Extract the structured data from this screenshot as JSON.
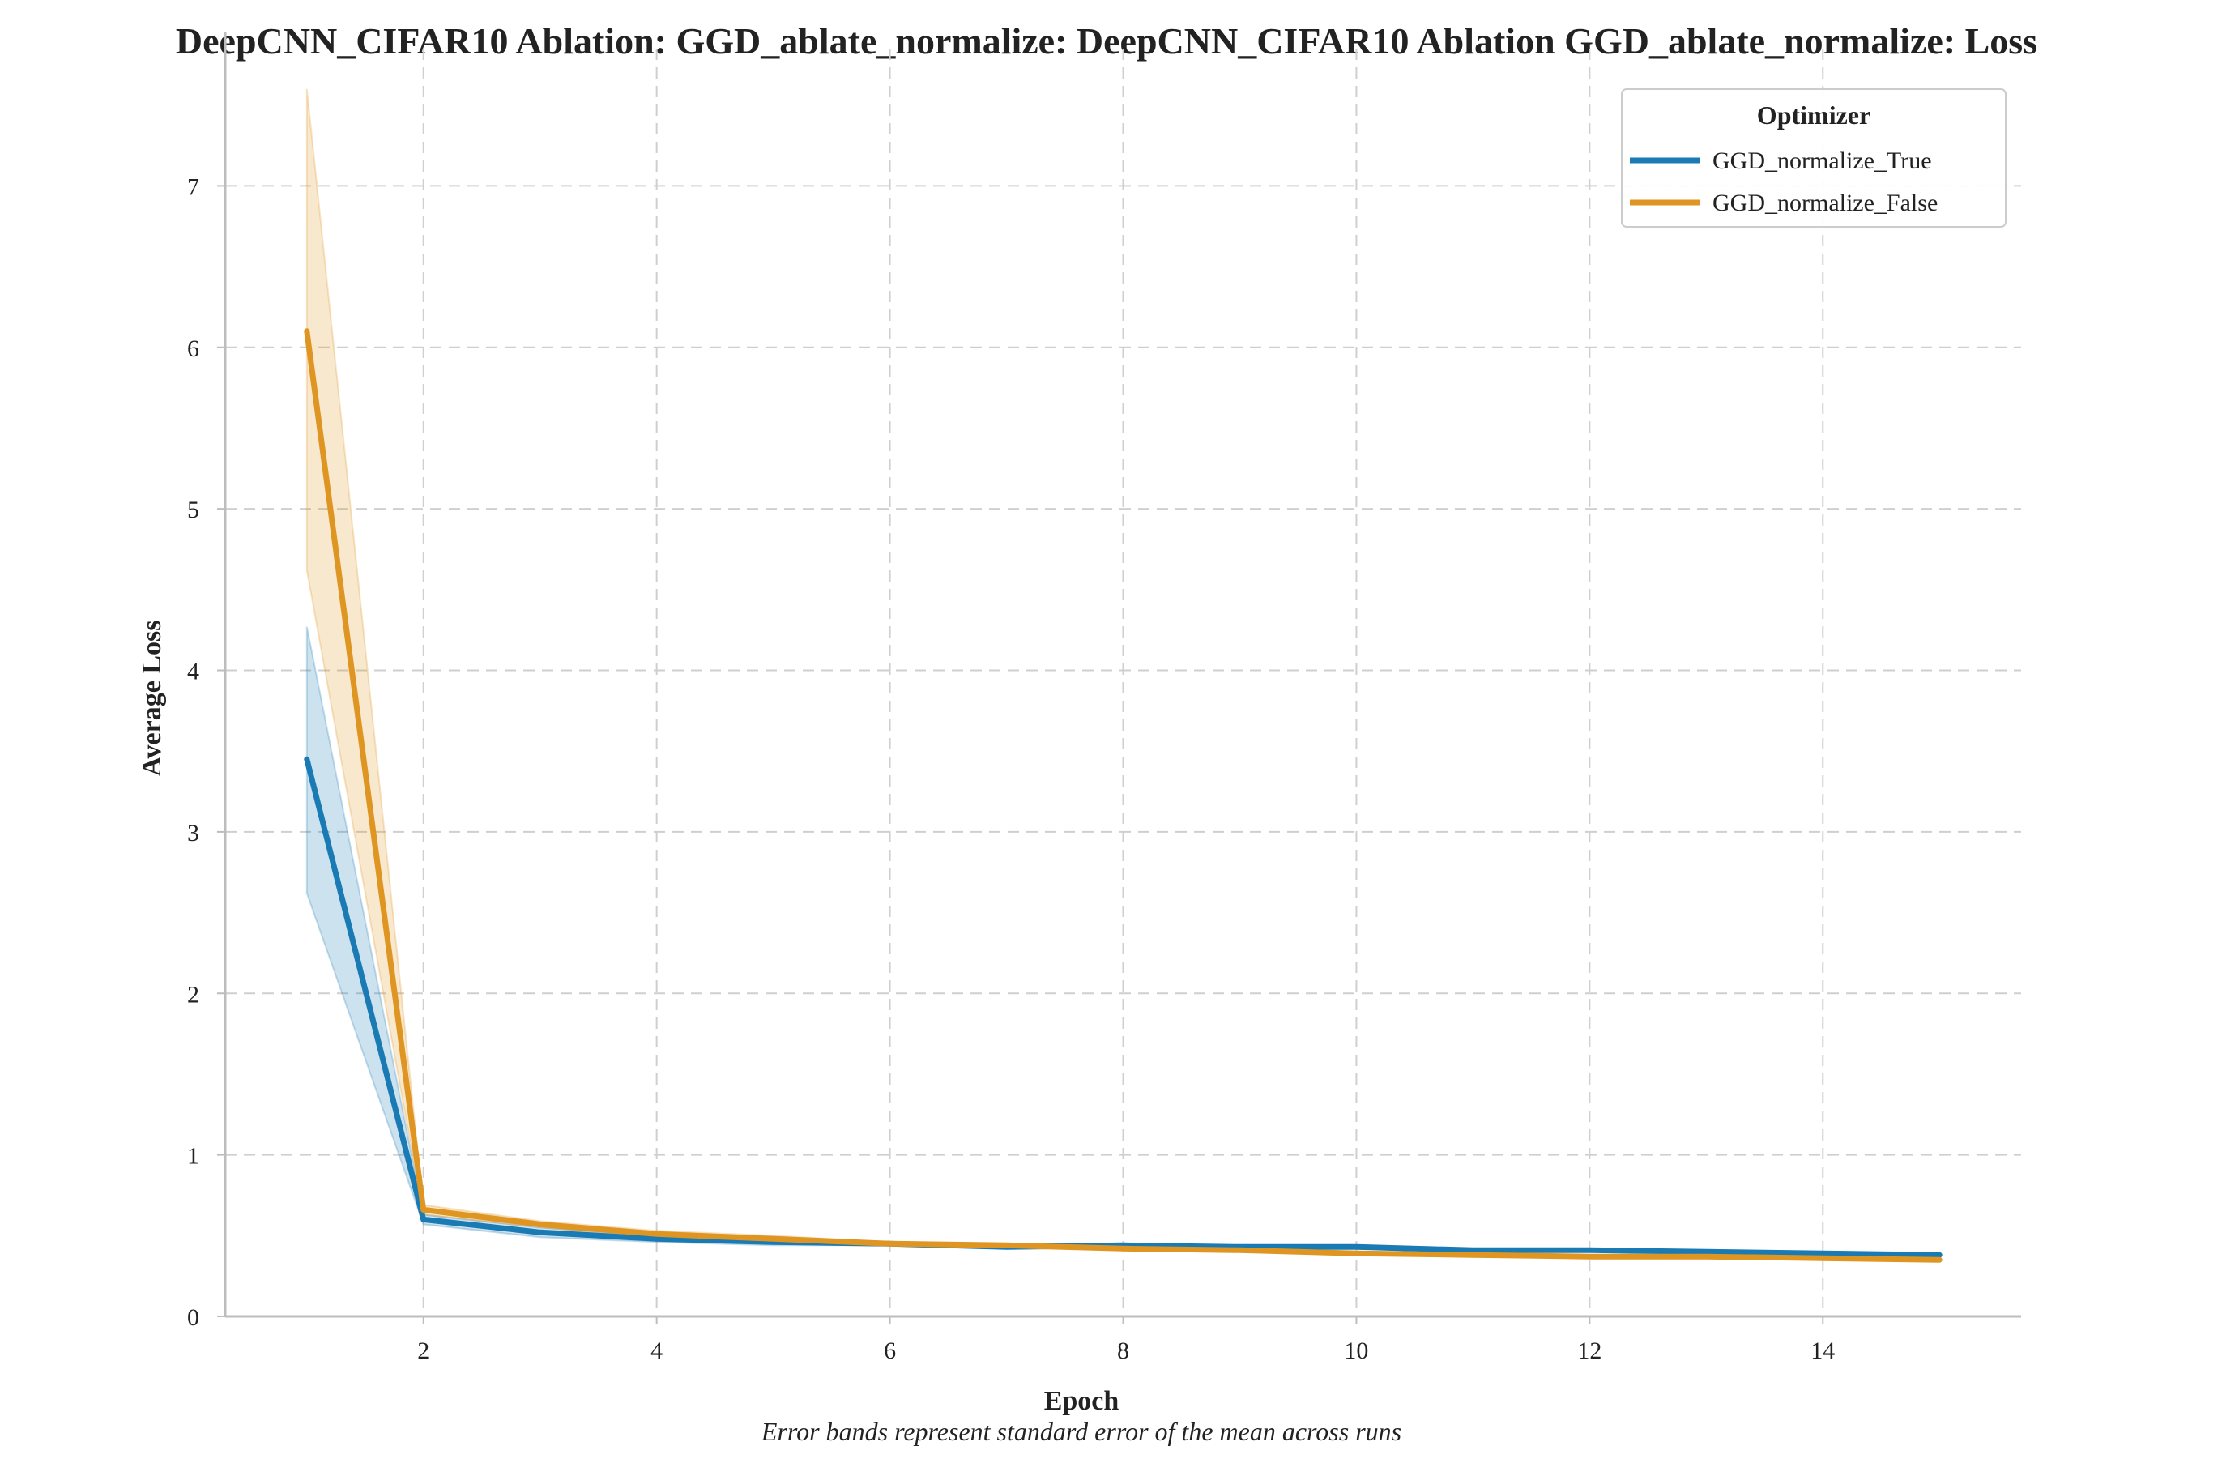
{
  "chart_data": {
    "type": "line",
    "title": "DeepCNN_CIFAR10 Ablation: GGD_ablate_normalize: DeepCNN_CIFAR10 Ablation GGD_ablate_normalize: Loss",
    "xlabel": "Epoch",
    "ylabel": "Average Loss",
    "caption": "Error bands represent standard error of the mean across runs",
    "xlim": [
      0.3,
      15.7
    ],
    "ylim": [
      0,
      7.95
    ],
    "xticks": [
      2,
      4,
      6,
      8,
      10,
      12,
      14
    ],
    "yticks": [
      0,
      1,
      2,
      3,
      4,
      5,
      6,
      7
    ],
    "grid": true,
    "legend": {
      "title": "Optimizer",
      "placement": "top-right"
    },
    "x": [
      1,
      2,
      3,
      4,
      5,
      6,
      7,
      8,
      9,
      10,
      11,
      12,
      13,
      14,
      15
    ],
    "series": [
      {
        "name": "GGD_normalize_True",
        "color": "#1a7ab4",
        "values": [
          3.45,
          0.6,
          0.52,
          0.48,
          0.46,
          0.45,
          0.43,
          0.44,
          0.43,
          0.43,
          0.41,
          0.41,
          0.4,
          0.39,
          0.38
        ],
        "lower": [
          2.62,
          0.57,
          0.49,
          0.46,
          0.44,
          0.44,
          0.42,
          0.43,
          0.42,
          0.42,
          0.4,
          0.4,
          0.39,
          0.38,
          0.37
        ],
        "upper": [
          4.27,
          0.63,
          0.55,
          0.5,
          0.48,
          0.46,
          0.44,
          0.45,
          0.44,
          0.44,
          0.42,
          0.42,
          0.41,
          0.4,
          0.39
        ]
      },
      {
        "name": "GGD_normalize_False",
        "color": "#df9521",
        "values": [
          6.1,
          0.66,
          0.57,
          0.51,
          0.48,
          0.45,
          0.44,
          0.42,
          0.41,
          0.39,
          0.38,
          0.37,
          0.37,
          0.36,
          0.35
        ],
        "lower": [
          4.62,
          0.63,
          0.55,
          0.49,
          0.46,
          0.44,
          0.43,
          0.41,
          0.4,
          0.38,
          0.37,
          0.36,
          0.36,
          0.35,
          0.34
        ],
        "upper": [
          7.6,
          0.69,
          0.59,
          0.53,
          0.5,
          0.46,
          0.45,
          0.43,
          0.42,
          0.4,
          0.39,
          0.38,
          0.38,
          0.37,
          0.36
        ]
      }
    ]
  }
}
